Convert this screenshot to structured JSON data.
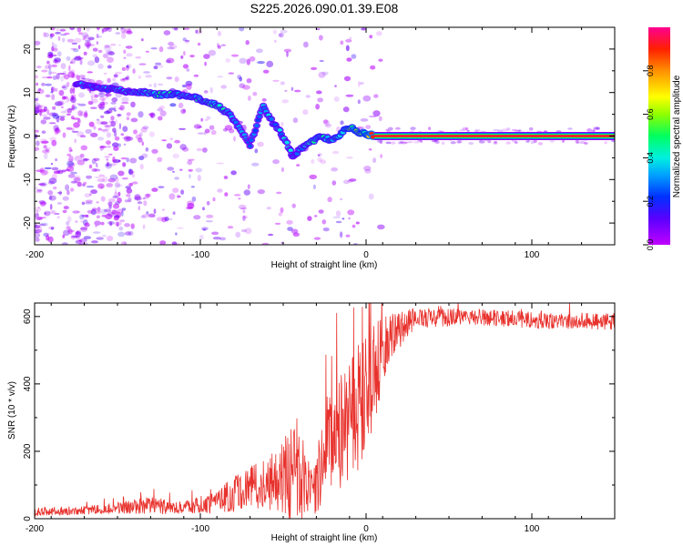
{
  "title": "S225.2026.090.01.39.E08",
  "chart_data": [
    {
      "type": "heatmap",
      "name": "spectrogram",
      "xlabel": "Height of straight line (km)",
      "ylabel": "Frequency (Hz)",
      "xlim": [
        -200,
        150
      ],
      "ylim": [
        -25,
        25
      ],
      "xticks": [
        -200,
        -100,
        0,
        100
      ],
      "yticks": [
        -20,
        -10,
        0,
        10,
        20
      ],
      "colorbar": {
        "label": "Normalized spectral amplitude",
        "range": [
          0,
          1
        ],
        "ticks": [
          0.0,
          0.2,
          0.4,
          0.6,
          0.8
        ],
        "tick_labels": [
          "0.0",
          "0.2",
          "0.4",
          "0.6",
          "0.8"
        ]
      },
      "ridge": [
        {
          "x": -175,
          "y": 12,
          "amp": 0.3
        },
        {
          "x": -168,
          "y": 11.5,
          "amp": 0.3
        },
        {
          "x": -140,
          "y": 10,
          "amp": 0.35
        },
        {
          "x": -132,
          "y": 10,
          "amp": 0.4
        },
        {
          "x": -125,
          "y": 9.5,
          "amp": 0.45
        },
        {
          "x": -118,
          "y": 9.5,
          "amp": 0.45
        },
        {
          "x": -110,
          "y": 9.5,
          "amp": 0.4
        },
        {
          "x": -100,
          "y": 8.5,
          "amp": 0.4
        },
        {
          "x": -90,
          "y": 7,
          "amp": 0.45
        },
        {
          "x": -82,
          "y": 5,
          "amp": 0.35
        },
        {
          "x": -75,
          "y": 1,
          "amp": 0.3
        },
        {
          "x": -70,
          "y": -2,
          "amp": 0.25
        },
        {
          "x": -62,
          "y": 7,
          "amp": 0.35
        },
        {
          "x": -58,
          "y": 4,
          "amp": 0.35
        },
        {
          "x": -52,
          "y": 1,
          "amp": 0.35
        },
        {
          "x": -46,
          "y": -3,
          "amp": 0.35
        },
        {
          "x": -44,
          "y": -5,
          "amp": 0.3
        },
        {
          "x": -40,
          "y": -3,
          "amp": 0.35
        },
        {
          "x": -35,
          "y": -2,
          "amp": 0.4
        },
        {
          "x": -28,
          "y": 0,
          "amp": 0.45
        },
        {
          "x": -20,
          "y": -1,
          "amp": 0.45
        },
        {
          "x": -14,
          "y": 1,
          "amp": 0.5
        },
        {
          "x": -10,
          "y": 2,
          "amp": 0.55
        },
        {
          "x": -5,
          "y": 1,
          "amp": 0.55
        },
        {
          "x": 0,
          "y": 0.5,
          "amp": 0.6
        },
        {
          "x": 5,
          "y": 0,
          "amp": 0.85
        },
        {
          "x": 150,
          "y": 0,
          "amp": 0.85
        }
      ]
    },
    {
      "type": "line",
      "name": "snr",
      "xlabel": "Height of straight line (km)",
      "ylabel": "SNR (10 * v/v)",
      "xlim": [
        -200,
        150
      ],
      "ylim": [
        0,
        640
      ],
      "xticks": [
        -200,
        -100,
        0,
        100
      ],
      "yticks": [
        0,
        200,
        400,
        600
      ],
      "color": "#e8322d",
      "envelope": [
        {
          "x": -200,
          "mean": 20,
          "noise": 12
        },
        {
          "x": -160,
          "mean": 28,
          "noise": 14
        },
        {
          "x": -130,
          "mean": 40,
          "noise": 25
        },
        {
          "x": -110,
          "mean": 30,
          "noise": 20
        },
        {
          "x": -95,
          "mean": 45,
          "noise": 30
        },
        {
          "x": -75,
          "mean": 80,
          "noise": 60
        },
        {
          "x": -55,
          "mean": 110,
          "noise": 90
        },
        {
          "x": -42,
          "mean": 150,
          "noise": 180
        },
        {
          "x": -32,
          "mean": 60,
          "noise": 60
        },
        {
          "x": -25,
          "mean": 200,
          "noise": 160
        },
        {
          "x": -15,
          "mean": 270,
          "noise": 180
        },
        {
          "x": -5,
          "mean": 330,
          "noise": 190
        },
        {
          "x": 5,
          "mean": 430,
          "noise": 150
        },
        {
          "x": 15,
          "mean": 540,
          "noise": 70
        },
        {
          "x": 30,
          "mean": 595,
          "noise": 30
        },
        {
          "x": 60,
          "mean": 600,
          "noise": 25
        },
        {
          "x": 100,
          "mean": 590,
          "noise": 25
        },
        {
          "x": 150,
          "mean": 585,
          "noise": 25
        }
      ]
    }
  ]
}
